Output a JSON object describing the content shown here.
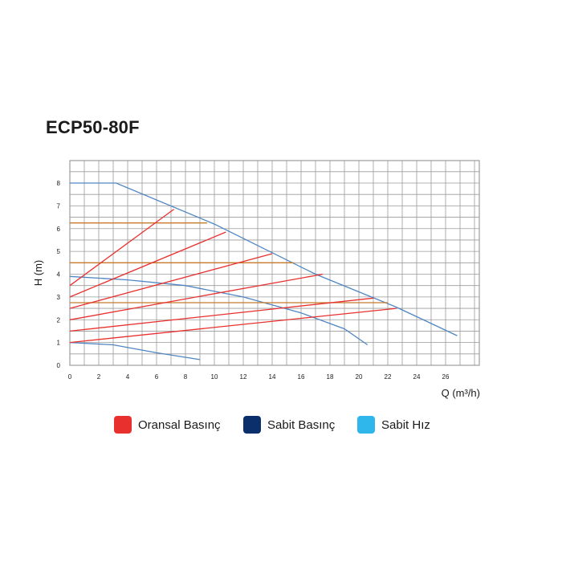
{
  "chart_data": {
    "type": "line",
    "title": "ECP50-80F",
    "xlabel": "Q (m³/h)",
    "ylabel": "H (m)",
    "xlim": [
      0,
      28
    ],
    "ylim": [
      0,
      8
    ],
    "x_ticks": [
      "0",
      "2",
      "4",
      "6",
      "8",
      "10",
      "12",
      "14",
      "16",
      "18",
      "20",
      "22",
      "24",
      "26"
    ],
    "y_ticks": [
      "0",
      "1",
      "2",
      "3",
      "4",
      "5",
      "6",
      "7",
      "8"
    ],
    "grid": true,
    "legend_position": "bottom",
    "series": [
      {
        "name": "Oransal Basınç",
        "color": "#e8312f",
        "lines": [
          [
            [
              0,
              1.0
            ],
            [
              22.6,
              2.5
            ]
          ],
          [
            [
              0,
              1.5
            ],
            [
              21.0,
              2.95
            ]
          ],
          [
            [
              0,
              2.0
            ],
            [
              17.5,
              4.0
            ]
          ],
          [
            [
              0,
              2.5
            ],
            [
              14.0,
              4.9
            ]
          ],
          [
            [
              0,
              3.0
            ],
            [
              10.8,
              5.85
            ]
          ],
          [
            [
              0,
              3.5
            ],
            [
              7.2,
              6.85
            ]
          ]
        ]
      },
      {
        "name": "Sabit Basınç",
        "color": "#0b2f6b",
        "lines": [
          [
            [
              0,
              2.75
            ],
            [
              22.0,
              2.75
            ]
          ],
          [
            [
              0,
              4.5
            ],
            [
              15.5,
              4.5
            ]
          ],
          [
            [
              0,
              6.25
            ],
            [
              9.5,
              6.25
            ]
          ]
        ]
      },
      {
        "name": "Sabit Hız",
        "color": "#2fb6ea",
        "lines": [
          [
            [
              0,
              8.0
            ],
            [
              3.2,
              8.0
            ],
            [
              10.0,
              6.2
            ],
            [
              17.0,
              4.0
            ],
            [
              22.6,
              2.55
            ],
            [
              26.8,
              1.3
            ]
          ],
          [
            [
              0,
              3.9
            ],
            [
              4.0,
              3.75
            ],
            [
              8.0,
              3.5
            ],
            [
              12.0,
              3.0
            ],
            [
              16.0,
              2.3
            ],
            [
              19.0,
              1.6
            ],
            [
              20.6,
              0.9
            ]
          ],
          [
            [
              0,
              1.0
            ],
            [
              3.0,
              0.9
            ],
            [
              6.0,
              0.55
            ],
            [
              9.0,
              0.25
            ]
          ]
        ]
      }
    ],
    "legend": [
      {
        "label": "Oransal Basınç",
        "color": "#e8312f"
      },
      {
        "label": "Sabit Basınç",
        "color": "#0b2f6b"
      },
      {
        "label": "Sabit Hız",
        "color": "#2fb6ea"
      }
    ]
  }
}
